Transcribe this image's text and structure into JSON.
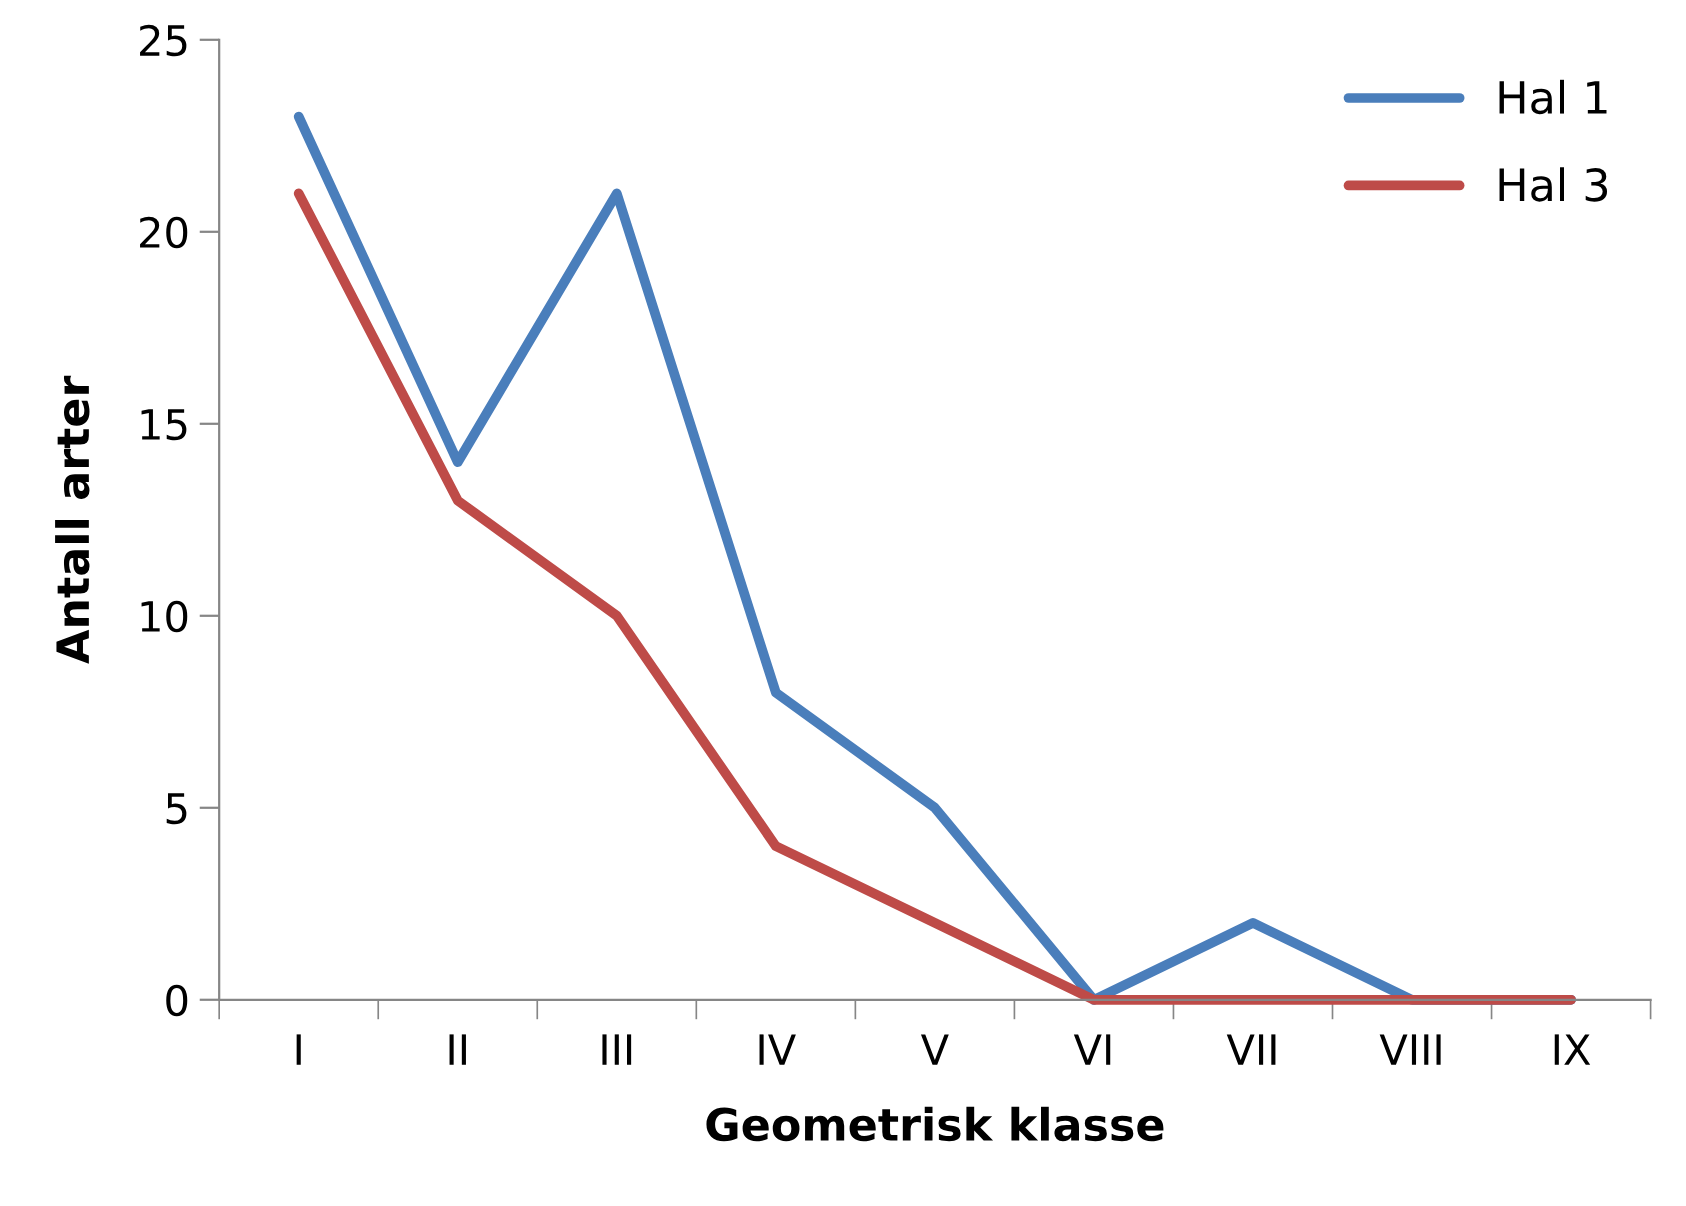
{
  "chart_data": {
    "type": "line",
    "xlabel": "Geometrisk klasse",
    "ylabel": "Antall arter",
    "categories": [
      "I",
      "II",
      "III",
      "IV",
      "V",
      "VI",
      "VII",
      "VIII",
      "IX"
    ],
    "series": [
      {
        "name": "Hal 1",
        "color": "#4a7ebb",
        "values": [
          23,
          14,
          21,
          8,
          5,
          0,
          2,
          0,
          0
        ]
      },
      {
        "name": "Hal 3",
        "color": "#be4b48",
        "values": [
          21,
          13,
          10,
          4,
          2,
          0,
          0,
          0,
          0
        ]
      }
    ],
    "ylim": [
      0,
      25
    ],
    "yticks": [
      0,
      5,
      10,
      15,
      20,
      25
    ],
    "grid": false,
    "legend": "top right",
    "marker": "none",
    "line_style": "solid"
  }
}
